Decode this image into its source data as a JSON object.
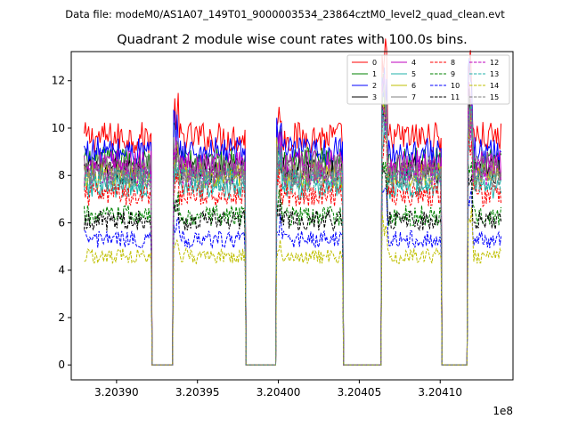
{
  "suptitle": "Data file: modeM0/AS1A07_149T01_9000003534_23864cztM0_level2_quad_clean.evt",
  "chart_data": {
    "type": "line",
    "title": "Quadrant 2 module wise count rates with 100.0s bins.",
    "xlabel": "",
    "ylabel": "",
    "x_offset_label": "1e8",
    "xlim": [
      3.203872,
      3.204145
    ],
    "ylim": [
      -0.63,
      13.23
    ],
    "xticks": [
      3.2039,
      3.20395,
      3.204,
      3.20405,
      3.2041
    ],
    "xtick_labels": [
      "3.20390",
      "3.20395",
      "3.20400",
      "3.20405",
      "3.20410"
    ],
    "yticks": [
      0,
      2,
      4,
      6,
      8,
      10,
      12
    ],
    "ytick_labels": [
      "0",
      "2",
      "4",
      "6",
      "8",
      "10",
      "12"
    ],
    "x_range": [
      3.20388,
      3.204138
    ],
    "gaps": [
      [
        3.203922,
        3.203935
      ],
      [
        3.20398,
        3.203999
      ],
      [
        3.20404,
        3.204064
      ],
      [
        3.204101,
        3.204117
      ]
    ],
    "series": [
      {
        "name": "0",
        "color": "#ff0000",
        "dash": "solid",
        "level": 9.6
      },
      {
        "name": "1",
        "color": "#008000",
        "dash": "solid",
        "level": 8.6
      },
      {
        "name": "2",
        "color": "#0000ff",
        "dash": "solid",
        "level": 9.0
      },
      {
        "name": "3",
        "color": "#000000",
        "dash": "solid",
        "level": 8.2
      },
      {
        "name": "4",
        "color": "#bf00bf",
        "dash": "solid",
        "level": 8.5
      },
      {
        "name": "5",
        "color": "#20b2aa",
        "dash": "solid",
        "level": 7.5
      },
      {
        "name": "6",
        "color": "#bfbf00",
        "dash": "solid",
        "level": 8.0
      },
      {
        "name": "7",
        "color": "#808080",
        "dash": "solid",
        "level": 8.3
      },
      {
        "name": "8",
        "color": "#ff0000",
        "dash": "dashed",
        "level": 7.2
      },
      {
        "name": "9",
        "color": "#008000",
        "dash": "dashed",
        "level": 6.3
      },
      {
        "name": "10",
        "color": "#0000ff",
        "dash": "dashed",
        "level": 5.3
      },
      {
        "name": "11",
        "color": "#000000",
        "dash": "dashed",
        "level": 6.1
      },
      {
        "name": "12",
        "color": "#bf00bf",
        "dash": "dashed",
        "level": 8.1
      },
      {
        "name": "13",
        "color": "#20b2aa",
        "dash": "dashed",
        "level": 7.8
      },
      {
        "name": "14",
        "color": "#bfbf00",
        "dash": "dashed",
        "level": 4.6
      },
      {
        "name": "15",
        "color": "#808080",
        "dash": "dashed",
        "level": 7.9
      }
    ],
    "legend": {
      "location": "top-right",
      "columns": 4
    }
  }
}
